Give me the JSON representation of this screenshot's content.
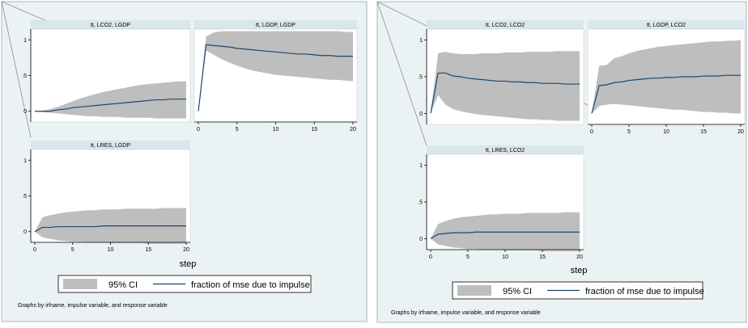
{
  "chart_data": [
    {
      "type": "line",
      "x_axis_label": "step",
      "footnote": "Graphs by irfname, impulse variable, and response variable",
      "legend": {
        "ci_label": "95% CI",
        "line_label": "fraction of mse due to impulse",
        "placement": "bottom"
      },
      "xticks": [
        "0",
        "5",
        "10",
        "15",
        "20"
      ],
      "yticks": [
        "0",
        ".5",
        "1"
      ],
      "xlim": [
        0,
        20
      ],
      "ylim": [
        0,
        1
      ],
      "colors": {
        "frame_bg": "#eaf2f3",
        "panel_title_bg": "#d9e6eb",
        "ci_fill": "#bebebe",
        "line": "#1a476f"
      },
      "panels": [
        {
          "title": "tt, LCO2, LGDP",
          "x": [
            0,
            1,
            2,
            3,
            4,
            5,
            6,
            7,
            8,
            9,
            10,
            11,
            12,
            13,
            14,
            15,
            16,
            17,
            18,
            19,
            20
          ],
          "y": [
            0,
            0,
            0,
            0.02,
            0.03,
            0.05,
            0.06,
            0.07,
            0.08,
            0.09,
            0.1,
            0.11,
            0.12,
            0.13,
            0.14,
            0.15,
            0.16,
            0.16,
            0.17,
            0.17,
            0.17
          ],
          "ci_lower": [
            0,
            -0.01,
            -0.02,
            -0.03,
            -0.04,
            -0.05,
            -0.06,
            -0.07,
            -0.07,
            -0.08,
            -0.08,
            -0.08,
            -0.09,
            -0.09,
            -0.09,
            -0.09,
            -0.1,
            -0.1,
            -0.1,
            -0.1,
            -0.1
          ],
          "ci_upper": [
            0,
            0.01,
            0.03,
            0.06,
            0.1,
            0.14,
            0.18,
            0.21,
            0.24,
            0.27,
            0.29,
            0.31,
            0.33,
            0.35,
            0.37,
            0.38,
            0.39,
            0.4,
            0.41,
            0.42,
            0.42
          ]
        },
        {
          "title": "tt, LGDP, LGDP",
          "x": [
            0,
            1,
            2,
            3,
            4,
            5,
            6,
            7,
            8,
            9,
            10,
            11,
            12,
            13,
            14,
            15,
            16,
            17,
            18,
            19,
            20
          ],
          "y": [
            0,
            0.93,
            0.92,
            0.91,
            0.9,
            0.88,
            0.87,
            0.86,
            0.85,
            0.84,
            0.83,
            0.82,
            0.81,
            0.8,
            0.8,
            0.79,
            0.78,
            0.78,
            0.77,
            0.77,
            0.77
          ],
          "ci_lower": [
            0,
            0.85,
            0.79,
            0.73,
            0.68,
            0.64,
            0.6,
            0.57,
            0.55,
            0.53,
            0.51,
            0.5,
            0.49,
            0.48,
            0.47,
            0.46,
            0.45,
            0.44,
            0.44,
            0.43,
            0.42
          ],
          "ci_upper": [
            0,
            1.05,
            1.1,
            1.12,
            1.12,
            1.12,
            1.12,
            1.12,
            1.12,
            1.12,
            1.12,
            1.12,
            1.12,
            1.12,
            1.12,
            1.12,
            1.12,
            1.12,
            1.12,
            1.11,
            1.11
          ]
        },
        {
          "title": "tt, LRES, LGDP",
          "x": [
            0,
            1,
            2,
            3,
            4,
            5,
            6,
            7,
            8,
            9,
            10,
            11,
            12,
            13,
            14,
            15,
            16,
            17,
            18,
            19,
            20
          ],
          "y": [
            0,
            0.06,
            0.06,
            0.07,
            0.07,
            0.07,
            0.07,
            0.07,
            0.07,
            0.08,
            0.08,
            0.08,
            0.08,
            0.08,
            0.08,
            0.08,
            0.08,
            0.08,
            0.08,
            0.08,
            0.08
          ],
          "ci_lower": [
            0,
            -0.08,
            -0.1,
            -0.12,
            -0.13,
            -0.14,
            -0.14,
            -0.15,
            -0.15,
            -0.15,
            -0.16,
            -0.16,
            -0.16,
            -0.16,
            -0.16,
            -0.17,
            -0.17,
            -0.17,
            -0.17,
            -0.17,
            -0.17
          ],
          "ci_upper": [
            0,
            0.2,
            0.23,
            0.25,
            0.27,
            0.28,
            0.29,
            0.3,
            0.3,
            0.31,
            0.31,
            0.31,
            0.32,
            0.32,
            0.32,
            0.32,
            0.32,
            0.33,
            0.33,
            0.33,
            0.33
          ]
        }
      ]
    },
    {
      "type": "line",
      "x_axis_label": "step",
      "footnote": "Graphs by irfname, impulse variable, and response variable",
      "legend": {
        "ci_label": "95% CI",
        "line_label": "fraction of mse due to impulse",
        "placement": "bottom"
      },
      "xticks": [
        "0",
        "5",
        "10",
        "15",
        "20"
      ],
      "yticks": [
        "0",
        ".5",
        "1"
      ],
      "xlim": [
        0,
        20
      ],
      "ylim": [
        0,
        1
      ],
      "colors": {
        "frame_bg": "#eaf2f3",
        "panel_title_bg": "#d9e6eb",
        "ci_fill": "#bebebe",
        "line": "#1a476f"
      },
      "panels": [
        {
          "title": "tt, LCO2, LCO2",
          "x": [
            0,
            1,
            2,
            3,
            4,
            5,
            6,
            7,
            8,
            9,
            10,
            11,
            12,
            13,
            14,
            15,
            16,
            17,
            18,
            19,
            20
          ],
          "y": [
            0,
            0.55,
            0.55,
            0.51,
            0.5,
            0.48,
            0.47,
            0.46,
            0.45,
            0.44,
            0.44,
            0.43,
            0.43,
            0.42,
            0.42,
            0.41,
            0.41,
            0.41,
            0.4,
            0.4,
            0.4
          ],
          "ci_lower": [
            0,
            0.25,
            0.12,
            0.06,
            0.03,
            0.01,
            -0.01,
            -0.02,
            -0.03,
            -0.04,
            -0.05,
            -0.06,
            -0.07,
            -0.08,
            -0.08,
            -0.09,
            -0.09,
            -0.1,
            -0.1,
            -0.1,
            -0.1
          ],
          "ci_upper": [
            0,
            0.82,
            0.84,
            0.82,
            0.81,
            0.81,
            0.81,
            0.82,
            0.82,
            0.82,
            0.83,
            0.83,
            0.83,
            0.84,
            0.84,
            0.84,
            0.84,
            0.85,
            0.85,
            0.85,
            0.85
          ]
        },
        {
          "title": "tt, LGDP, LCO2",
          "x": [
            0,
            1,
            2,
            3,
            4,
            5,
            6,
            7,
            8,
            9,
            10,
            11,
            12,
            13,
            14,
            15,
            16,
            17,
            18,
            19,
            20
          ],
          "y": [
            0,
            0.38,
            0.39,
            0.42,
            0.43,
            0.45,
            0.46,
            0.47,
            0.48,
            0.48,
            0.49,
            0.49,
            0.5,
            0.5,
            0.5,
            0.51,
            0.51,
            0.51,
            0.52,
            0.52,
            0.52
          ],
          "ci_lower": [
            0,
            0.1,
            0.12,
            0.13,
            0.12,
            0.11,
            0.1,
            0.09,
            0.08,
            0.07,
            0.06,
            0.05,
            0.05,
            0.04,
            0.03,
            0.02,
            0.02,
            0.01,
            0.01,
            0.0,
            0.0
          ],
          "ci_upper": [
            0,
            0.65,
            0.66,
            0.75,
            0.78,
            0.82,
            0.85,
            0.87,
            0.89,
            0.91,
            0.92,
            0.93,
            0.94,
            0.95,
            0.96,
            0.97,
            0.98,
            0.98,
            0.99,
            0.99,
            1.0
          ]
        },
        {
          "title": "tt, LRES, LCO2",
          "x": [
            0,
            1,
            2,
            3,
            4,
            5,
            6,
            7,
            8,
            9,
            10,
            11,
            12,
            13,
            14,
            15,
            16,
            17,
            18,
            19,
            20
          ],
          "y": [
            0,
            0.06,
            0.07,
            0.08,
            0.08,
            0.08,
            0.09,
            0.09,
            0.09,
            0.09,
            0.09,
            0.09,
            0.09,
            0.09,
            0.09,
            0.09,
            0.09,
            0.09,
            0.09,
            0.09,
            0.09
          ],
          "ci_lower": [
            0,
            -0.08,
            -0.1,
            -0.12,
            -0.13,
            -0.14,
            -0.14,
            -0.15,
            -0.15,
            -0.15,
            -0.16,
            -0.16,
            -0.16,
            -0.16,
            -0.16,
            -0.17,
            -0.17,
            -0.17,
            -0.17,
            -0.17,
            -0.17
          ],
          "ci_upper": [
            0,
            0.2,
            0.24,
            0.27,
            0.29,
            0.3,
            0.31,
            0.32,
            0.33,
            0.33,
            0.34,
            0.34,
            0.34,
            0.35,
            0.35,
            0.35,
            0.35,
            0.35,
            0.36,
            0.36,
            0.36
          ]
        }
      ]
    }
  ]
}
